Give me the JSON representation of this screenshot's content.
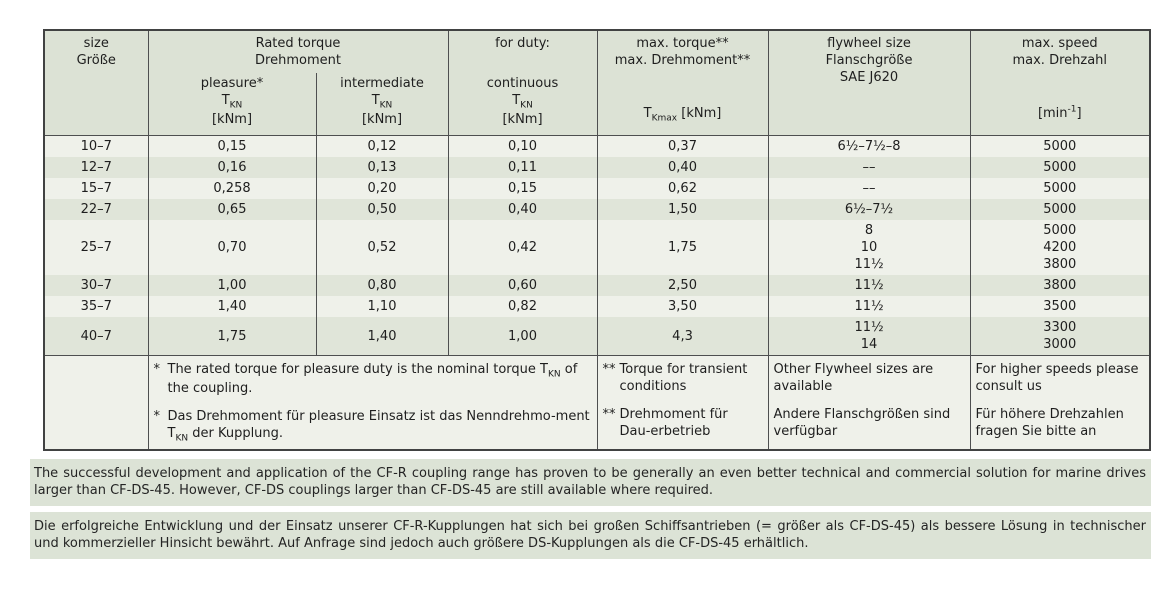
{
  "colors": {
    "page_bg": "#ffffff",
    "header_bg": "#dce2d5",
    "row_light_bg": "#eff1ea",
    "row_dark_bg": "#e0e5d9",
    "paragraph_bg": "#dce3d6",
    "border": "#414242",
    "text": "#1e1e1e"
  },
  "table": {
    "header": {
      "size": [
        "size",
        "Größe"
      ],
      "rated_torque_group": [
        "Rated torque",
        "Drehmoment"
      ],
      "for_duty": "for duty:",
      "pleasure": "pleasure*",
      "intermediate": "intermediate",
      "continuous": "continuous",
      "t_symbol": "T",
      "t_sub_kn": "KN",
      "unit_knm": "[kNm]",
      "max_torque_lines": [
        "max. torque**",
        "max. Drehmoment**"
      ],
      "t_sub_kmax": "Kmax",
      "kmax_unit": " [kNm]",
      "flywheel_lines": [
        "flywheel size",
        "Flanschgröße",
        "SAE J620"
      ],
      "speed_lines": [
        "max. speed",
        "max. Drehzahl"
      ],
      "speed_unit_pre": "[min",
      "speed_unit_sup": "-1",
      "speed_unit_post": "]"
    },
    "columns": [
      "size",
      "pleasure-torque",
      "intermediate-torque",
      "continuous-torque",
      "max-torque",
      "flywheel-size",
      "max-speed"
    ],
    "rows": [
      {
        "shade": "light",
        "cells": [
          [
            "10–7"
          ],
          [
            "0,15"
          ],
          [
            "0,12"
          ],
          [
            "0,10"
          ],
          [
            "0,37"
          ],
          [
            "6½–7½–8"
          ],
          [
            "5000"
          ]
        ]
      },
      {
        "shade": "dark",
        "cells": [
          [
            "12–7"
          ],
          [
            "0,16"
          ],
          [
            "0,13"
          ],
          [
            "0,11"
          ],
          [
            "0,40"
          ],
          [
            "––"
          ],
          [
            "5000"
          ]
        ]
      },
      {
        "shade": "light",
        "cells": [
          [
            "15–7"
          ],
          [
            "0,258"
          ],
          [
            "0,20"
          ],
          [
            "0,15"
          ],
          [
            "0,62"
          ],
          [
            "––"
          ],
          [
            "5000"
          ]
        ]
      },
      {
        "shade": "dark",
        "cells": [
          [
            "22–7"
          ],
          [
            "0,65"
          ],
          [
            "0,50"
          ],
          [
            "0,40"
          ],
          [
            "1,50"
          ],
          [
            "6½–7½"
          ],
          [
            "5000"
          ]
        ]
      },
      {
        "shade": "light",
        "cells": [
          [
            "25–7"
          ],
          [
            "0,70"
          ],
          [
            "0,52"
          ],
          [
            "0,42"
          ],
          [
            "1,75"
          ],
          [
            "8",
            "10",
            "11½"
          ],
          [
            "5000",
            "4200",
            "3800"
          ]
        ]
      },
      {
        "shade": "dark",
        "cells": [
          [
            "30–7"
          ],
          [
            "1,00"
          ],
          [
            "0,80"
          ],
          [
            "0,60"
          ],
          [
            "2,50"
          ],
          [
            "11½"
          ],
          [
            "3800"
          ]
        ]
      },
      {
        "shade": "light",
        "cells": [
          [
            "35–7"
          ],
          [
            "1,40"
          ],
          [
            "1,10"
          ],
          [
            "0,82"
          ],
          [
            "3,50"
          ],
          [
            "11½"
          ],
          [
            "3500"
          ]
        ]
      },
      {
        "shade": "dark",
        "cells": [
          [
            "40–7"
          ],
          [
            "1,75"
          ],
          [
            "1,40"
          ],
          [
            "1,00"
          ],
          [
            "4,3"
          ],
          [
            "11½",
            "14"
          ],
          [
            "3300",
            "3000"
          ]
        ]
      }
    ],
    "footnotes": {
      "rated": {
        "marker": "*",
        "en_pre": "The rated torque for pleasure duty is the nominal torque T",
        "en_post": " of the coupling.",
        "de_pre": "Das Drehmoment für pleasure Einsatz ist das Nenndrehmo-ment T",
        "de_post": " der Kupplung.",
        "sub": "KN"
      },
      "torque": {
        "marker": "**",
        "en": "Torque for transient conditions",
        "de": "Drehmoment für Dau-erbetrieb"
      },
      "flywheel": {
        "en": "Other Flywheel sizes are available",
        "de": "Andere Flanschgrößen sind verfügbar"
      },
      "speed": {
        "en": "For higher speeds please consult us",
        "de": "Für höhere Drehzahlen fragen Sie bitte an"
      }
    }
  },
  "paragraphs": {
    "en": "The successful development and application of the CF-R coupling range has proven to be generally an even better technical and commercial solution for marine drives larger than CF-DS-45. However, CF-DS couplings larger than CF-DS-45 are still available where required.",
    "de": "Die erfolgreiche Entwicklung und der Einsatz unserer CF-R-Kupplungen hat sich bei großen Schiffsantrieben (= größer als CF-DS-45) als bessere Lösung in technischer und kommerzieller Hinsicht bewährt. Auf Anfrage sind jedoch auch größere DS-Kupplungen als die CF-DS-45 erhältlich."
  }
}
